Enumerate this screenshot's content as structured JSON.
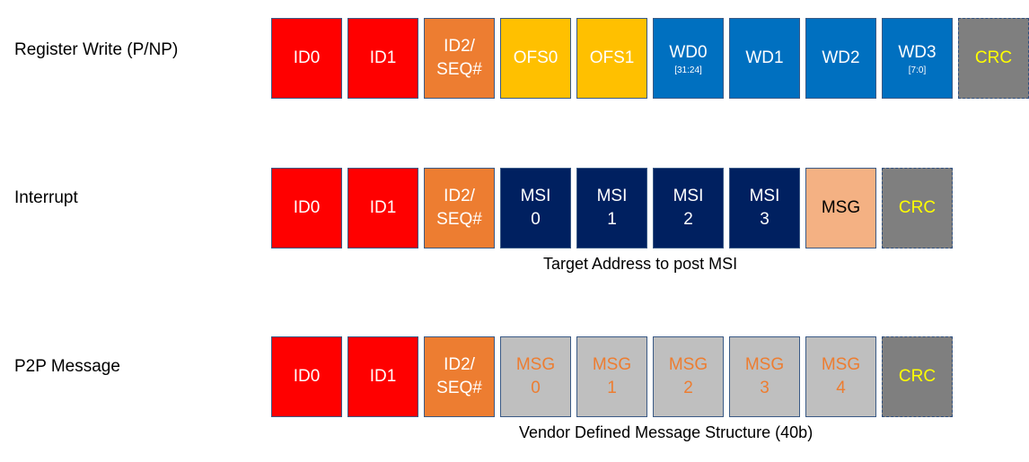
{
  "rows": [
    {
      "label": "Register Write (P/NP)",
      "fields": [
        {
          "line1": "ID0",
          "line2": "",
          "sub": "",
          "color": "#ff0000"
        },
        {
          "line1": "ID1",
          "line2": "",
          "sub": "",
          "color": "#ff0000"
        },
        {
          "line1": "ID2/",
          "line2": "SEQ#",
          "sub": "",
          "color": "#ed7d31"
        },
        {
          "line1": "OFS0",
          "line2": "",
          "sub": "",
          "color": "#ffc000"
        },
        {
          "line1": "OFS1",
          "line2": "",
          "sub": "",
          "color": "#ffc000"
        },
        {
          "line1": "WD0",
          "line2": "",
          "sub": "[31:24]",
          "color": "#0070c0"
        },
        {
          "line1": "WD1",
          "line2": "",
          "sub": "",
          "color": "#0070c0"
        },
        {
          "line1": "WD2",
          "line2": "",
          "sub": "",
          "color": "#0070c0"
        },
        {
          "line1": "WD3",
          "line2": "",
          "sub": "[7:0]",
          "color": "#0070c0"
        },
        {
          "line1": "CRC",
          "line2": "",
          "sub": "",
          "color": "#7f7f7f"
        }
      ],
      "caption": ""
    },
    {
      "label": "Interrupt",
      "fields": [
        {
          "line1": "ID0",
          "line2": "",
          "sub": "",
          "color": "#ff0000"
        },
        {
          "line1": "ID1",
          "line2": "",
          "sub": "",
          "color": "#ff0000"
        },
        {
          "line1": "ID2/",
          "line2": "SEQ#",
          "sub": "",
          "color": "#ed7d31"
        },
        {
          "line1": "MSI",
          "line2": "0",
          "sub": "",
          "color": "#002060"
        },
        {
          "line1": "MSI",
          "line2": "1",
          "sub": "",
          "color": "#002060"
        },
        {
          "line1": "MSI",
          "line2": "2",
          "sub": "",
          "color": "#002060"
        },
        {
          "line1": "MSI",
          "line2": "3",
          "sub": "",
          "color": "#002060"
        },
        {
          "line1": "MSG",
          "line2": "",
          "sub": "",
          "color": "#f4b183"
        },
        {
          "line1": "CRC",
          "line2": "",
          "sub": "",
          "color": "#7f7f7f"
        }
      ],
      "caption": "Target Address to post MSI"
    },
    {
      "label": "P2P Message",
      "fields": [
        {
          "line1": "ID0",
          "line2": "",
          "sub": "",
          "color": "#ff0000"
        },
        {
          "line1": "ID1",
          "line2": "",
          "sub": "",
          "color": "#ff0000"
        },
        {
          "line1": "ID2/",
          "line2": "SEQ#",
          "sub": "",
          "color": "#ed7d31"
        },
        {
          "line1": "MSG",
          "line2": "0",
          "sub": "",
          "color": "#bfbfbf"
        },
        {
          "line1": "MSG",
          "line2": "1",
          "sub": "",
          "color": "#bfbfbf"
        },
        {
          "line1": "MSG",
          "line2": "2",
          "sub": "",
          "color": "#bfbfbf"
        },
        {
          "line1": "MSG",
          "line2": "3",
          "sub": "",
          "color": "#bfbfbf"
        },
        {
          "line1": "MSG",
          "line2": "4",
          "sub": "",
          "color": "#bfbfbf"
        },
        {
          "line1": "CRC",
          "line2": "",
          "sub": "",
          "color": "#7f7f7f"
        }
      ],
      "caption": "Vendor Defined Message Structure (40b)"
    }
  ]
}
